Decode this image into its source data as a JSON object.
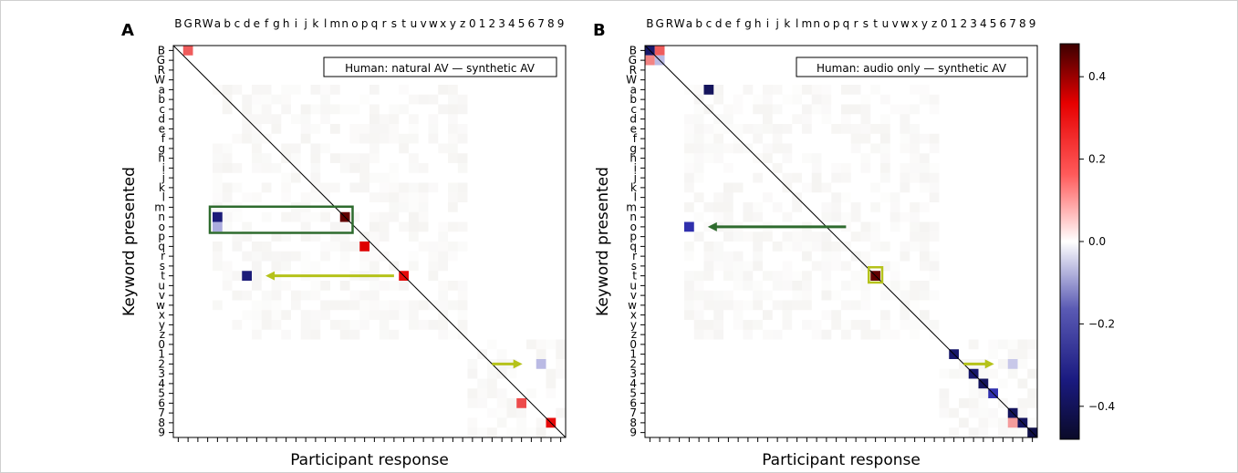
{
  "labels": [
    "B",
    "G",
    "R",
    "W",
    "a",
    "b",
    "c",
    "d",
    "e",
    "f",
    "g",
    "h",
    "i",
    "j",
    "k",
    "l",
    "m",
    "n",
    "o",
    "p",
    "q",
    "r",
    "s",
    "t",
    "u",
    "v",
    "w",
    "x",
    "y",
    "z",
    "0",
    "1",
    "2",
    "3",
    "4",
    "5",
    "6",
    "7",
    "8",
    "9"
  ],
  "colorbar": {
    "ticks": [
      0.4,
      0.2,
      0.0,
      -0.2,
      -0.4
    ],
    "tick_labels": [
      "0.4",
      "0.2",
      "0.0",
      "−0.2",
      "−0.4"
    ],
    "vmin": -0.48,
    "vmax": 0.48
  },
  "colors": {
    "frame": "#000000",
    "highlight_box": "#2e6b2e",
    "arrow_dark_green": "#2e6b2e",
    "arrow_yellow_green": "#b5c21a",
    "noise": "#c8c2b8"
  },
  "chart_data": [
    {
      "type": "heatmap",
      "panel_letter": "A",
      "legend": "Human: natural AV — synthetic AV",
      "xlabel": "Participant response",
      "ylabel": "Keyword presented",
      "cells": [
        {
          "row": "B",
          "col": "G",
          "value": 0.2
        },
        {
          "row": "n",
          "col": "a",
          "value": -0.38
        },
        {
          "row": "o",
          "col": "a",
          "value": -0.12
        },
        {
          "row": "n",
          "col": "n",
          "value": 0.45
        },
        {
          "row": "q",
          "col": "p",
          "value": 0.32
        },
        {
          "row": "t",
          "col": "t",
          "value": 0.3
        },
        {
          "row": "t",
          "col": "d",
          "value": -0.38
        },
        {
          "row": "2",
          "col": "7",
          "value": -0.1
        },
        {
          "row": "6",
          "col": "5",
          "value": 0.22
        },
        {
          "row": "8",
          "col": "8",
          "value": 0.3
        }
      ],
      "highlight_box": {
        "row": "n",
        "col_from": "a",
        "col_to": "n"
      },
      "arrows": [
        {
          "row": "t",
          "from_col": "s",
          "to_col": "e",
          "color": "yellow-green"
        },
        {
          "row": "2",
          "from_col": "2",
          "to_col": "6",
          "color": "yellow-green"
        }
      ]
    },
    {
      "type": "heatmap",
      "panel_letter": "B",
      "legend": "Human: audio only — synthetic AV",
      "xlabel": "Participant response",
      "ylabel": "Keyword presented",
      "cells": [
        {
          "row": "B",
          "col": "B",
          "value": -0.4
        },
        {
          "row": "B",
          "col": "G",
          "value": 0.2
        },
        {
          "row": "G",
          "col": "B",
          "value": 0.15
        },
        {
          "row": "G",
          "col": "G",
          "value": -0.1
        },
        {
          "row": "a",
          "col": "c",
          "value": -0.42
        },
        {
          "row": "o",
          "col": "a",
          "value": -0.3
        },
        {
          "row": "t",
          "col": "t",
          "value": 0.45
        },
        {
          "row": "1",
          "col": "1",
          "value": -0.4
        },
        {
          "row": "3",
          "col": "3",
          "value": -0.4
        },
        {
          "row": "4",
          "col": "4",
          "value": -0.42
        },
        {
          "row": "5",
          "col": "5",
          "value": -0.3
        },
        {
          "row": "7",
          "col": "7",
          "value": -0.42
        },
        {
          "row": "8",
          "col": "7",
          "value": 0.12
        },
        {
          "row": "8",
          "col": "8",
          "value": -0.42
        },
        {
          "row": "9",
          "col": "9",
          "value": -0.45
        },
        {
          "row": "2",
          "col": "7",
          "value": -0.08
        }
      ],
      "highlight_box": {
        "row": "t",
        "col_from": "t",
        "col_to": "t"
      },
      "arrows": [
        {
          "row": "o",
          "from_col": "q",
          "to_col": "b",
          "color": "dark-green"
        },
        {
          "row": "2",
          "from_col": "2",
          "to_col": "6",
          "color": "yellow-green"
        }
      ]
    }
  ]
}
